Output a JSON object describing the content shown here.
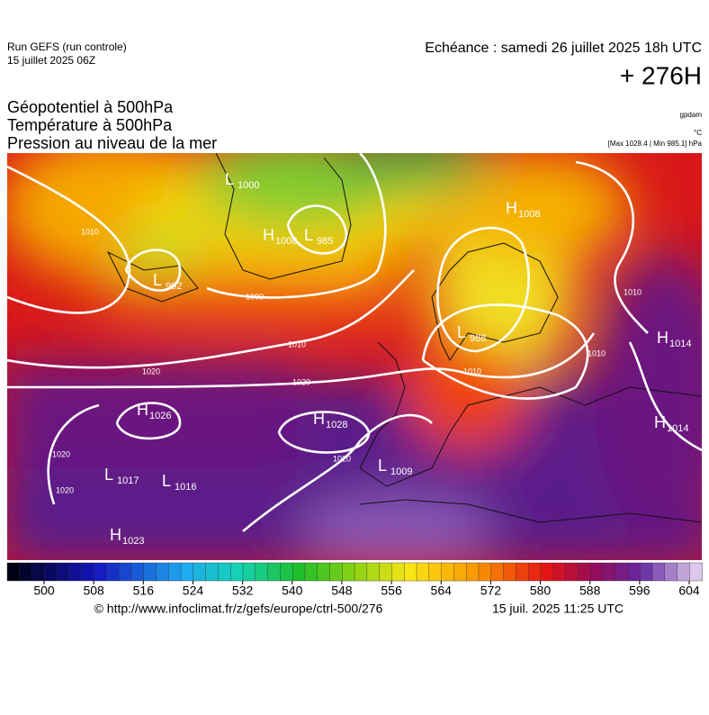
{
  "header": {
    "run": "Run GEFS (run controle)",
    "run_date": "15 juillet 2025 06Z",
    "echeance": "Echéance : samedi 26 juillet 2025 18h UTC",
    "lead": "+ 276H",
    "titles": [
      "Géopotentiel à 500hPa",
      "Température à 500hPa",
      "Pression au niveau de la mer"
    ],
    "units": [
      "gpdam",
      "°C",
      "[Max 1028.4 | Min 985.1] hPa"
    ]
  },
  "map": {
    "centers": [
      {
        "kind": "H",
        "value": "1008"
      },
      {
        "kind": "L",
        "value": "985"
      },
      {
        "kind": "L",
        "value": "992"
      },
      {
        "kind": "L",
        "value": "1000"
      },
      {
        "kind": "H",
        "value": "1008"
      },
      {
        "kind": "H",
        "value": "1014"
      },
      {
        "kind": "H",
        "value": "1014"
      },
      {
        "kind": "H",
        "value": "1026"
      },
      {
        "kind": "H",
        "value": "1028"
      },
      {
        "kind": "L",
        "value": "1009"
      },
      {
        "kind": "L",
        "value": "1017"
      },
      {
        "kind": "L",
        "value": "1016"
      },
      {
        "kind": "H",
        "value": "1023"
      },
      {
        "kind": "L",
        "value": "988"
      }
    ],
    "isobar_labels": [
      "1010",
      "1000",
      "1010",
      "1020",
      "1020",
      "1010",
      "1010",
      "1010",
      "1020",
      "1020",
      "1020"
    ]
  },
  "colorbar": {
    "ticks": [
      500,
      508,
      516,
      524,
      532,
      540,
      548,
      556,
      564,
      572,
      580,
      588,
      596,
      604
    ]
  },
  "footer": {
    "source": "© http://www.infoclimat.fr/z/gefs/europe/ctrl-500/276",
    "generated": "15 juil. 2025 11:25 UTC"
  }
}
